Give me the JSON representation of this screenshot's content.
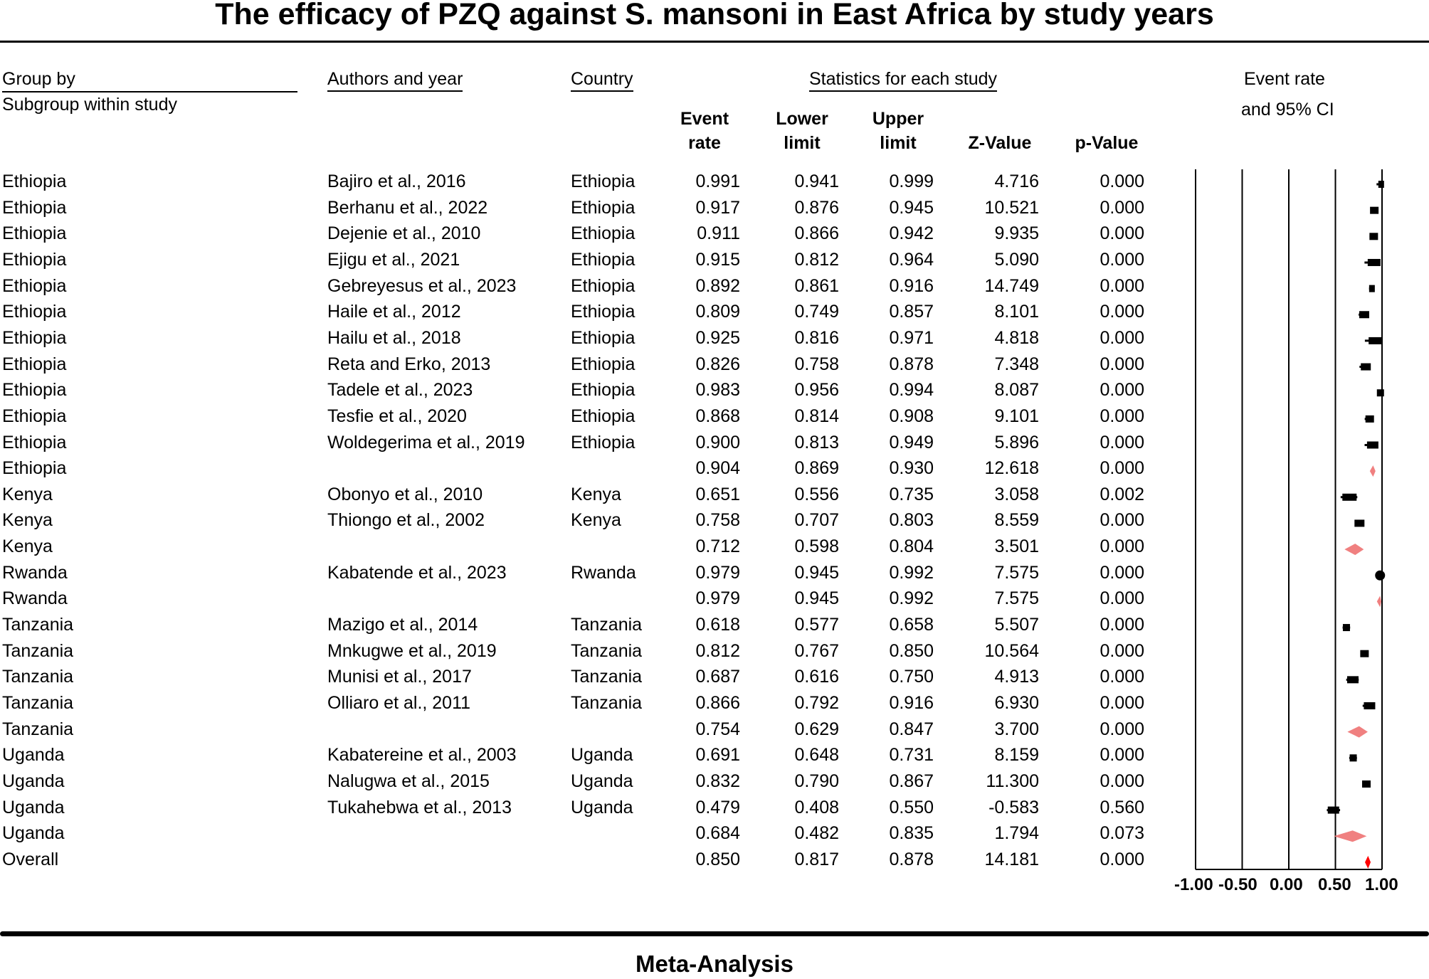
{
  "title": "The efficacy of PZQ against S. mansoni in East Africa by study years",
  "footer": "Meta-Analysis",
  "headers": {
    "group_by": "Group by",
    "subgroup": "Subgroup within study",
    "authors": "Authors and year",
    "country": "Country",
    "stats": "Statistics for each study",
    "event_rate_l1": "Event",
    "event_rate_l2": "rate",
    "lower_l1": "Lower",
    "lower_l2": "limit",
    "upper_l1": "Upper",
    "upper_l2": "limit",
    "z": "Z-Value",
    "p": "p-Value",
    "plot_l1": "Event rate",
    "plot_l2": "and 95% CI"
  },
  "axis_tick_labels": [
    "-1.00",
    "-0.50",
    "0.00",
    "0.50",
    "1.00"
  ],
  "colors": {
    "study": "#000000",
    "subtotal": "#f08080",
    "overall": "#ff0000"
  },
  "chart_data": {
    "type": "forest",
    "title": "The efficacy of PZQ against S. mansoni in East Africa by study years",
    "xlabel": "Event rate and 95% CI",
    "xlim": [
      -1.0,
      1.0
    ],
    "ticks": [
      -1.0,
      -0.5,
      0.0,
      0.5,
      1.0
    ],
    "rows": [
      {
        "group": "Ethiopia",
        "author": "Bajiro et al., 2016",
        "country": "Ethiopia",
        "er": "0.991",
        "ll": "0.941",
        "ul": "0.999",
        "z": "4.716",
        "p": "0.000",
        "kind": "study",
        "w": 4
      },
      {
        "group": "Ethiopia",
        "author": "Berhanu et al., 2022",
        "country": "Ethiopia",
        "er": "0.917",
        "ll": "0.876",
        "ul": "0.945",
        "z": "10.521",
        "p": "0.000",
        "kind": "study",
        "w": 6
      },
      {
        "group": "Ethiopia",
        "author": "Dejenie et al., 2010",
        "country": "Ethiopia",
        "er": "0.911",
        "ll": "0.866",
        "ul": "0.942",
        "z": "9.935",
        "p": "0.000",
        "kind": "study",
        "w": 6
      },
      {
        "group": "Ethiopia",
        "author": "Ejigu et al., 2021",
        "country": "Ethiopia",
        "er": "0.915",
        "ll": "0.812",
        "ul": "0.964",
        "z": "5.090",
        "p": "0.000",
        "kind": "study",
        "w": 9
      },
      {
        "group": "Ethiopia",
        "author": "Gebreyesus et al., 2023",
        "country": "Ethiopia",
        "er": "0.892",
        "ll": "0.861",
        "ul": "0.916",
        "z": "14.749",
        "p": "0.000",
        "kind": "study",
        "w": 4
      },
      {
        "group": "Ethiopia",
        "author": "Haile et al., 2012",
        "country": "Ethiopia",
        "er": "0.809",
        "ll": "0.749",
        "ul": "0.857",
        "z": "8.101",
        "p": "0.000",
        "kind": "study",
        "w": 7
      },
      {
        "group": "Ethiopia",
        "author": "Hailu et al., 2018",
        "country": "Ethiopia",
        "er": "0.925",
        "ll": "0.816",
        "ul": "0.971",
        "z": "4.818",
        "p": "0.000",
        "kind": "study",
        "w": 9
      },
      {
        "group": "Ethiopia",
        "author": "Reta and Erko, 2013",
        "country": "Ethiopia",
        "er": "0.826",
        "ll": "0.758",
        "ul": "0.878",
        "z": "7.348",
        "p": "0.000",
        "kind": "study",
        "w": 7
      },
      {
        "group": "Ethiopia",
        "author": "Tadele et al., 2023",
        "country": "Ethiopia",
        "er": "0.983",
        "ll": "0.956",
        "ul": "0.994",
        "z": "8.087",
        "p": "0.000",
        "kind": "study",
        "w": 5
      },
      {
        "group": "Ethiopia",
        "author": "Tesfie et al., 2020",
        "country": "Ethiopia",
        "er": "0.868",
        "ll": "0.814",
        "ul": "0.908",
        "z": "9.101",
        "p": "0.000",
        "kind": "study",
        "w": 6
      },
      {
        "group": "Ethiopia",
        "author": "Woldegerima et al., 2019",
        "country": "Ethiopia",
        "er": "0.900",
        "ll": "0.813",
        "ul": "0.949",
        "z": "5.896",
        "p": "0.000",
        "kind": "study",
        "w": 8
      },
      {
        "group": "Ethiopia",
        "author": "",
        "country": "",
        "er": "0.904",
        "ll": "0.869",
        "ul": "0.930",
        "z": "12.618",
        "p": "0.000",
        "kind": "subtotal",
        "w": 0
      },
      {
        "group": "Kenya",
        "author": "Obonyo et al., 2010",
        "country": "Kenya",
        "er": "0.651",
        "ll": "0.556",
        "ul": "0.735",
        "z": "3.058",
        "p": "0.002",
        "kind": "study",
        "w": 10
      },
      {
        "group": "Kenya",
        "author": "Thiongo et al., 2002",
        "country": "Kenya",
        "er": "0.758",
        "ll": "0.707",
        "ul": "0.803",
        "z": "8.559",
        "p": "0.000",
        "kind": "study",
        "w": 7
      },
      {
        "group": "Kenya",
        "author": "",
        "country": "",
        "er": "0.712",
        "ll": "0.598",
        "ul": "0.804",
        "z": "3.501",
        "p": "0.000",
        "kind": "subtotal",
        "w": 0
      },
      {
        "group": "Rwanda",
        "author": "Kabatende et al., 2023",
        "country": "Rwanda",
        "er": "0.979",
        "ll": "0.945",
        "ul": "0.992",
        "z": "7.575",
        "p": "0.000",
        "kind": "study",
        "w": 12
      },
      {
        "group": "Rwanda",
        "author": "",
        "country": "",
        "er": "0.979",
        "ll": "0.945",
        "ul": "0.992",
        "z": "7.575",
        "p": "0.000",
        "kind": "subtotal",
        "w": 0
      },
      {
        "group": "Tanzania",
        "author": "Mazigo et al., 2014",
        "country": "Tanzania",
        "er": "0.618",
        "ll": "0.577",
        "ul": "0.658",
        "z": "5.507",
        "p": "0.000",
        "kind": "study",
        "w": 5
      },
      {
        "group": "Tanzania",
        "author": "Mnkugwe et al., 2019",
        "country": "Tanzania",
        "er": "0.812",
        "ll": "0.767",
        "ul": "0.850",
        "z": "10.564",
        "p": "0.000",
        "kind": "study",
        "w": 6
      },
      {
        "group": "Tanzania",
        "author": "Munisi et al., 2017",
        "country": "Tanzania",
        "er": "0.687",
        "ll": "0.616",
        "ul": "0.750",
        "z": "4.913",
        "p": "0.000",
        "kind": "study",
        "w": 8
      },
      {
        "group": "Tanzania",
        "author": "Olliaro et al., 2011",
        "country": "Tanzania",
        "er": "0.866",
        "ll": "0.792",
        "ul": "0.916",
        "z": "6.930",
        "p": "0.000",
        "kind": "study",
        "w": 8
      },
      {
        "group": "Tanzania",
        "author": "",
        "country": "",
        "er": "0.754",
        "ll": "0.629",
        "ul": "0.847",
        "z": "3.700",
        "p": "0.000",
        "kind": "subtotal",
        "w": 0
      },
      {
        "group": "Uganda",
        "author": "Kabatereine et al., 2003",
        "country": "Uganda",
        "er": "0.691",
        "ll": "0.648",
        "ul": "0.731",
        "z": "8.159",
        "p": "0.000",
        "kind": "study",
        "w": 5
      },
      {
        "group": "Uganda",
        "author": "Nalugwa et al., 2015",
        "country": "Uganda",
        "er": "0.832",
        "ll": "0.790",
        "ul": "0.867",
        "z": "11.300",
        "p": "0.000",
        "kind": "study",
        "w": 6
      },
      {
        "group": "Uganda",
        "author": "Tukahebwa et al., 2013",
        "country": "Uganda",
        "er": "0.479",
        "ll": "0.408",
        "ul": "0.550",
        "z": "-0.583",
        "p": "0.560",
        "kind": "study",
        "w": 8
      },
      {
        "group": "Uganda",
        "author": "",
        "country": "",
        "er": "0.684",
        "ll": "0.482",
        "ul": "0.835",
        "z": "1.794",
        "p": "0.073",
        "kind": "subtotal",
        "w": 0
      },
      {
        "group": "Overall",
        "author": "",
        "country": "",
        "er": "0.850",
        "ll": "0.817",
        "ul": "0.878",
        "z": "14.181",
        "p": "0.000",
        "kind": "overall",
        "w": 0
      }
    ]
  }
}
